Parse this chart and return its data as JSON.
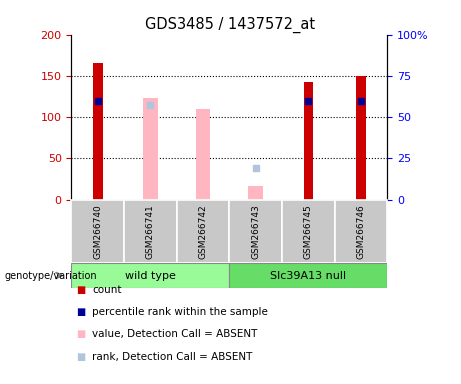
{
  "title": "GDS3485 / 1437572_at",
  "samples": [
    "GSM266740",
    "GSM266741",
    "GSM266742",
    "GSM266743",
    "GSM266745",
    "GSM266746"
  ],
  "count_values": [
    165,
    null,
    null,
    null,
    143,
    150
  ],
  "percentile_rank": [
    120,
    null,
    null,
    null,
    119,
    119
  ],
  "absent_value": [
    null,
    123,
    110,
    16,
    null,
    null
  ],
  "absent_rank": [
    null,
    115,
    null,
    38,
    null,
    null
  ],
  "ylim_left": [
    0,
    200
  ],
  "yticks_left": [
    0,
    50,
    100,
    150,
    200
  ],
  "yticks_right": [
    0,
    25,
    50,
    75,
    100
  ],
  "yticklabels_right": [
    "0",
    "25",
    "50",
    "75",
    "100%"
  ],
  "colors": {
    "count": "#CC0000",
    "percentile_rank": "#000099",
    "absent_value": "#FFB6C1",
    "absent_rank": "#B0C4DE",
    "label_bg": "#C8C8C8",
    "wildtype_bg": "#98FB98",
    "slc_bg": "#66DD66"
  },
  "wildtype_label": "wild type",
  "slc_label": "Slc39A13 null",
  "genotype_label": "genotype/variation",
  "legend_items": [
    {
      "color": "#CC0000",
      "label": "count"
    },
    {
      "color": "#000099",
      "label": "percentile rank within the sample"
    },
    {
      "color": "#FFB6C1",
      "label": "value, Detection Call = ABSENT"
    },
    {
      "color": "#B0C4DE",
      "label": "rank, Detection Call = ABSENT"
    }
  ]
}
